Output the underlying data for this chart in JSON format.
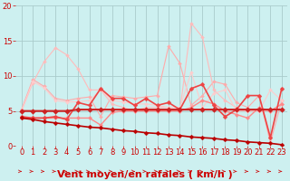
{
  "bg_color": "#cdf0f0",
  "grid_color": "#aacccc",
  "xlabel": "Vent moyen/en rafales ( km/h )",
  "xlim": [
    -0.5,
    23.5
  ],
  "ylim": [
    0,
    20
  ],
  "xticks": [
    0,
    1,
    2,
    3,
    4,
    5,
    6,
    7,
    8,
    9,
    10,
    11,
    12,
    13,
    14,
    15,
    16,
    17,
    18,
    19,
    20,
    21,
    22,
    23
  ],
  "yticks": [
    0,
    5,
    10,
    15,
    20
  ],
  "series": [
    {
      "color": "#ffaaaa",
      "lw": 0.8,
      "marker": "D",
      "ms": 2.0,
      "y": [
        5.2,
        9.5,
        8.5,
        6.8,
        6.5,
        6.8,
        7.0,
        4.2,
        7.2,
        7.0,
        6.8,
        7.0,
        7.2,
        14.2,
        11.8,
        5.8,
        7.2,
        9.2,
        8.8,
        6.2,
        5.5,
        7.2,
        0.5,
        6.5
      ]
    },
    {
      "color": "#ffbbbb",
      "lw": 0.8,
      "marker": "D",
      "ms": 2.0,
      "y": [
        5.0,
        9.0,
        12.0,
        14.0,
        13.0,
        11.0,
        8.0,
        8.0,
        6.0,
        5.5,
        5.0,
        5.5,
        5.5,
        5.5,
        5.0,
        17.5,
        15.5,
        8.0,
        6.5,
        5.5,
        5.0,
        5.0,
        5.0,
        6.0
      ]
    },
    {
      "color": "#ffcccc",
      "lw": 0.8,
      "marker": "D",
      "ms": 2.0,
      "y": [
        5.0,
        9.2,
        8.3,
        6.5,
        6.3,
        6.3,
        6.5,
        8.0,
        6.5,
        6.3,
        6.0,
        6.0,
        5.8,
        5.5,
        5.5,
        10.5,
        5.5,
        7.5,
        8.0,
        5.0,
        5.0,
        5.0,
        8.0,
        6.5
      ]
    },
    {
      "color": "#ff8888",
      "lw": 1.0,
      "marker": "D",
      "ms": 2.2,
      "y": [
        4.0,
        4.0,
        4.0,
        4.0,
        4.0,
        4.0,
        4.0,
        3.0,
        4.8,
        5.0,
        5.0,
        5.0,
        5.0,
        5.0,
        5.0,
        5.5,
        6.5,
        6.0,
        5.0,
        4.5,
        4.0,
        5.5,
        5.0,
        6.0
      ]
    },
    {
      "color": "#ee4444",
      "lw": 1.2,
      "marker": "D",
      "ms": 2.5,
      "y": [
        4.2,
        4.0,
        4.0,
        4.2,
        3.8,
        6.2,
        5.8,
        8.2,
        6.8,
        6.8,
        5.8,
        6.8,
        5.8,
        6.2,
        5.2,
        8.2,
        8.8,
        5.8,
        4.2,
        5.2,
        7.2,
        7.2,
        1.2,
        8.2
      ]
    },
    {
      "color": "#cc2222",
      "lw": 1.5,
      "marker": "D",
      "ms": 3.0,
      "y": [
        5.0,
        5.0,
        5.0,
        5.0,
        5.0,
        5.2,
        5.2,
        5.2,
        5.2,
        5.2,
        5.2,
        5.2,
        5.2,
        5.2,
        5.2,
        5.2,
        5.2,
        5.2,
        5.2,
        5.2,
        5.2,
        5.2,
        5.2,
        5.2
      ]
    },
    {
      "color": "#bb0000",
      "lw": 1.2,
      "marker": "D",
      "ms": 2.5,
      "y": [
        4.0,
        3.8,
        3.5,
        3.3,
        3.1,
        2.9,
        2.7,
        2.6,
        2.4,
        2.2,
        2.1,
        1.9,
        1.8,
        1.6,
        1.5,
        1.3,
        1.2,
        1.1,
        0.9,
        0.8,
        0.6,
        0.5,
        0.4,
        0.2
      ]
    }
  ],
  "arrow_color": "#cc2222",
  "xlabel_color": "#cc0000",
  "xlabel_fontsize": 8,
  "tick_color": "#cc0000",
  "tick_fontsize": 6
}
